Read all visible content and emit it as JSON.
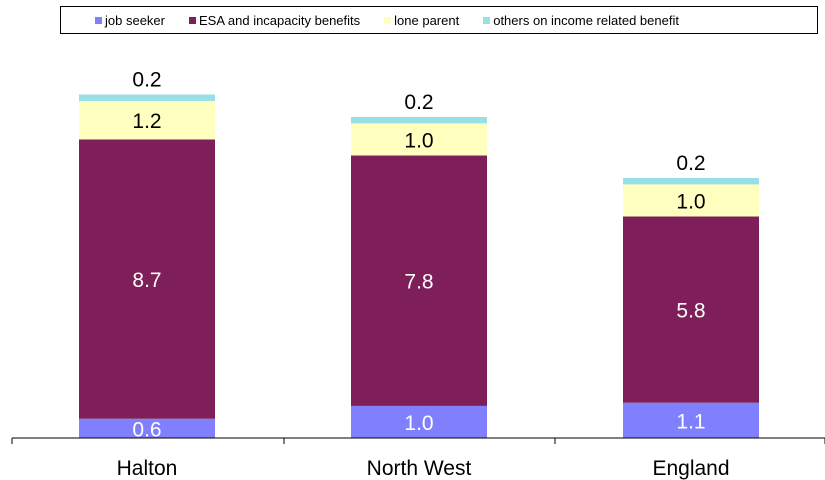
{
  "chart_data": {
    "type": "bar",
    "stacked": true,
    "categories": [
      "Halton",
      "North West",
      "England"
    ],
    "series": [
      {
        "name": "job seeker",
        "color": "#8080ff",
        "values": [
          0.6,
          1.0,
          1.1
        ]
      },
      {
        "name": "ESA and incapacity benefits",
        "color": "#7f1f5a",
        "values": [
          8.7,
          7.8,
          5.8
        ]
      },
      {
        "name": "lone parent",
        "color": "#ffffc0",
        "values": [
          1.2,
          1.0,
          1.0
        ]
      },
      {
        "name": "others on income related benefit",
        "color": "#99e0e6",
        "values": [
          0.2,
          0.2,
          0.2
        ]
      }
    ],
    "data_labels": [
      [
        "0.6",
        "1.0",
        "1.1"
      ],
      [
        "8.7",
        "7.8",
        "5.8"
      ],
      [
        "1.2",
        "1.0",
        "1.0"
      ],
      [
        "0.2",
        "0.2",
        "0.2"
      ]
    ],
    "ylim": [
      0,
      11
    ],
    "grid": false,
    "legend_position": "top"
  }
}
